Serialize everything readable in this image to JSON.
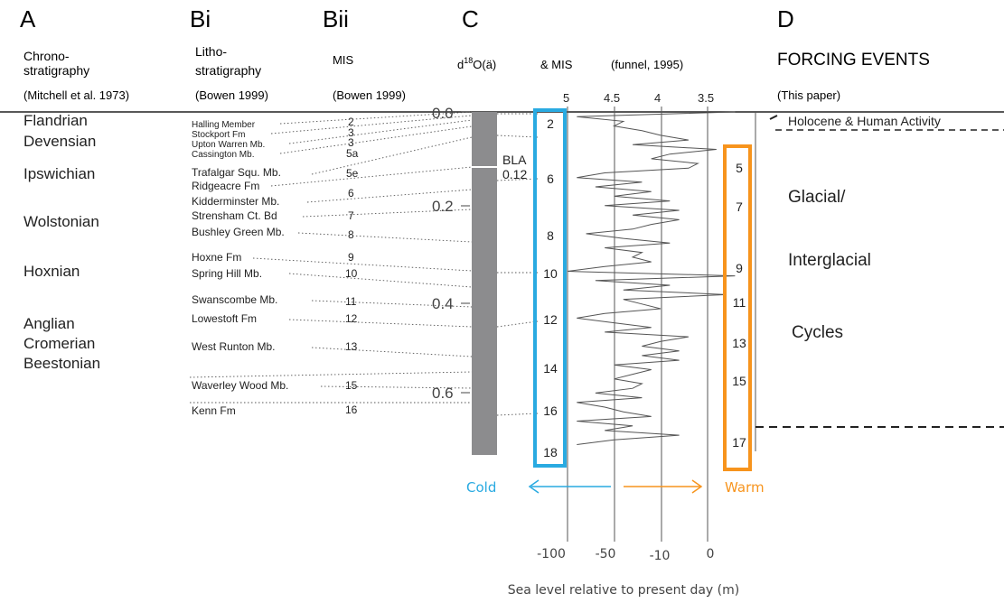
{
  "columns": {
    "A": {
      "letter": "A",
      "line1": "Chrono-",
      "line2": "stratigraphy",
      "source": "(Mitchell et al. 1973)"
    },
    "Bi": {
      "letter": "Bi",
      "line1": "Litho-",
      "line2": "stratigraphy",
      "source": "(Bowen 1999)"
    },
    "Bii": {
      "letter": "Bii",
      "line1": "MIS",
      "source": "(Bowen 1999)"
    },
    "C": {
      "letter": "C",
      "d18o_prefix": "d",
      "d18o_sup": "18",
      "d18o_suffix": "O(ä)",
      "mis_label": "& MIS",
      "source": "(funnel, 1995)"
    },
    "D": {
      "letter": "D",
      "title": "FORCING EVENTS",
      "source": "(This paper)"
    }
  },
  "chrono_stages": [
    "Flandrian",
    "Devensian",
    "Ipswichian",
    "Wolstonian",
    "Hoxnian",
    "Anglian",
    "Cromerian",
    "Beestonian"
  ],
  "litho_units": [
    "Halling Member",
    "Stockport Fm",
    "Upton Warren Mb.",
    "Cassington Mb.",
    "Trafalgar Squ. Mb.",
    "Ridgeacre Fm",
    "Kidderminster Mb.",
    "Strensham Ct. Bd",
    "Bushley Green Mb.",
    "Hoxne Fm",
    "Spring Hill Mb.",
    "Swanscombe Mb.",
    "Lowestoft Fm",
    "West Runton Mb.",
    "Waverley Wood Mb.",
    "Kenn Fm"
  ],
  "mis_bowen": [
    "2",
    "3",
    "3",
    "5a",
    "5e",
    "6",
    "7",
    "8",
    "9",
    "10",
    "11",
    "12",
    "13",
    "15",
    "16"
  ],
  "age_axis": {
    "ticks": [
      "0.0",
      "0.2",
      "0.4",
      "0.6"
    ],
    "bla_label": "BLA",
    "bla_age": "0.12"
  },
  "d18o_axis": {
    "ticks": [
      "5",
      "4.5",
      "4",
      "3.5"
    ]
  },
  "cold_mis": [
    "2",
    "6",
    "8",
    "10",
    "12",
    "14",
    "16",
    "18"
  ],
  "warm_mis": [
    "5",
    "7",
    "9",
    "11",
    "13",
    "15",
    "17"
  ],
  "forcing": {
    "holocene": "Holocene & Human Activity",
    "glacial": "Glacial/",
    "interglacial": "Interglacial",
    "cycles": "Cycles"
  },
  "legend": {
    "cold": "Cold",
    "warm": "Warm",
    "cold_color": "#29aae1",
    "warm_color": "#f7941d"
  },
  "sea_level_axis": {
    "ticks": [
      "-100",
      "-50",
      "-10",
      "0"
    ],
    "label": "Sea level relative to present day (m)"
  },
  "curve_depth": [
    0.0,
    0.01,
    0.02,
    0.03,
    0.04,
    0.05,
    0.06,
    0.07,
    0.08,
    0.09,
    0.1,
    0.11,
    0.12,
    0.13,
    0.14,
    0.15,
    0.16,
    0.17,
    0.18,
    0.19,
    0.2,
    0.21,
    0.22,
    0.23,
    0.24,
    0.25,
    0.26,
    0.27,
    0.28,
    0.29,
    0.3,
    0.31,
    0.32,
    0.33,
    0.34,
    0.35,
    0.36,
    0.37,
    0.38,
    0.39,
    0.4,
    0.41,
    0.42,
    0.43,
    0.44,
    0.45,
    0.46,
    0.47,
    0.48,
    0.49,
    0.5,
    0.51,
    0.52,
    0.53,
    0.54,
    0.55,
    0.56,
    0.57,
    0.58,
    0.59,
    0.6,
    0.61,
    0.62,
    0.63,
    0.64,
    0.65,
    0.66,
    0.67,
    0.68,
    0.69,
    0.7,
    0.71
  ],
  "curve_d18o": [
    3.2,
    4.9,
    4.4,
    4.5,
    4.2,
    4.0,
    3.7,
    4.3,
    3.4,
    3.9,
    4.1,
    3.6,
    3.7,
    4.6,
    4.9,
    4.2,
    4.7,
    4.1,
    4.5,
    3.9,
    4.6,
    3.8,
    4.3,
    3.8,
    4.1,
    4.3,
    4.8,
    4.4,
    3.9,
    4.6,
    4.2,
    4.3,
    4.1,
    4.6,
    5.0,
    3.2,
    4.7,
    3.9,
    4.4,
    3.3,
    4.4,
    4.2,
    4.0,
    4.6,
    4.9,
    4.5,
    4.1,
    4.6,
    3.7,
    4.0,
    4.2,
    3.8,
    4.2,
    3.8,
    4.5,
    4.1,
    4.3,
    4.5,
    4.2,
    4.3,
    4.7,
    4.2,
    4.9,
    4.6,
    4.4,
    4.1,
    4.9,
    4.3,
    4.6,
    3.8,
    4.5,
    4.9
  ]
}
